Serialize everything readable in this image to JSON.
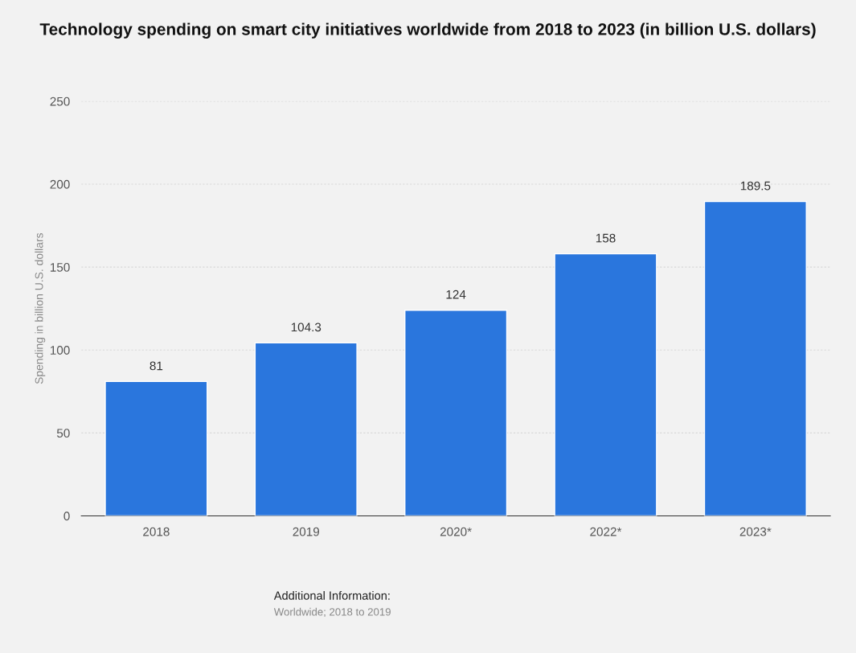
{
  "chart_data": {
    "type": "bar",
    "title": "Technology spending on smart city initiatives worldwide from 2018 to 2023 (in billion U.S. dollars)",
    "ylabel": "Spending in billion U.S. dollars",
    "categories": [
      "2018",
      "2019",
      "2020*",
      "2022*",
      "2023*"
    ],
    "values": [
      81,
      104.3,
      124,
      158,
      189.5
    ],
    "color": "#2a76dd",
    "ylim": [
      0,
      250
    ],
    "yticks": [
      0,
      50,
      100,
      150,
      200,
      250
    ],
    "grid": "y",
    "data_labels": true,
    "annotations": [
      "Additional Information:",
      "Worldwide; 2018 to 2019"
    ]
  }
}
